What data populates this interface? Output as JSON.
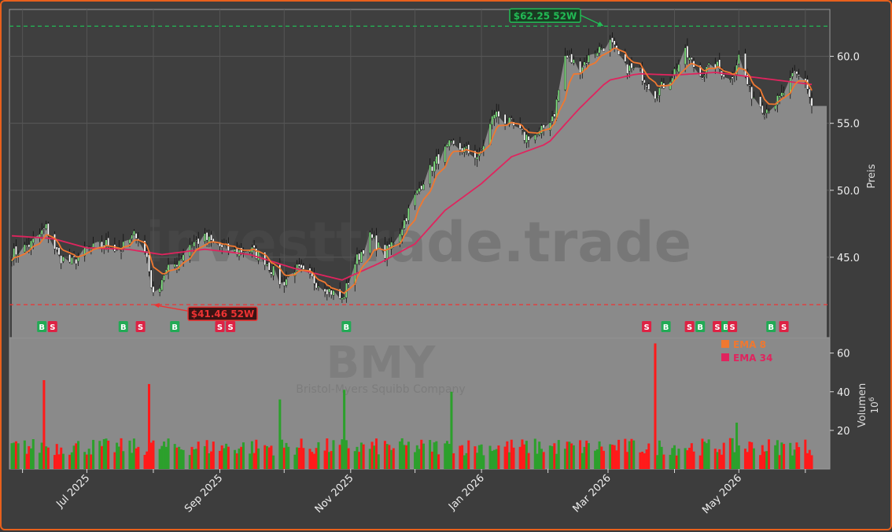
{
  "ticker": "BMY",
  "company": "Bristol-Myers Squibb Company",
  "watermark": "investtrade.trade",
  "price_axis_label": "Preis",
  "volume_axis_label": "Volumen",
  "volume_exponent": "10",
  "volume_exponent_power": "6",
  "high_label": "$62.25 52W",
  "low_label": "$41.46 52W",
  "legend": [
    {
      "label": "EMA 8",
      "color": "#f07830"
    },
    {
      "label": "EMA 34",
      "color": "#e0245e"
    }
  ],
  "colors": {
    "up": "#2ca02c",
    "down": "#ff1a1a",
    "ema8": "#f07830",
    "ema34": "#e0245e",
    "area": "#8a8a8a",
    "high_line": "#22bb55",
    "low_line": "#ee3333",
    "buy": "#22aa55",
    "sell": "#dd2244"
  },
  "chart_data": {
    "type": "line",
    "title": "BMY",
    "subtitle": "Bristol-Myers Squibb Company",
    "ylabel": "Preis",
    "ylim": [
      39.0,
      63.5
    ],
    "y_ticks": [
      "45.0",
      "50.0",
      "55.0",
      "60.0"
    ],
    "x_ticks": [
      "Jul 2025",
      "Sep 2025",
      "Nov 2025",
      "Jan 2026",
      "Mar 2026",
      "May 2026"
    ],
    "close_series_name": "BMY",
    "close_keyframes": [
      [
        "2025-05-27",
        45.2
      ],
      [
        "2025-06-05",
        46.0
      ],
      [
        "2025-06-12",
        47.2
      ],
      [
        "2025-06-18",
        45.0
      ],
      [
        "2025-06-24",
        44.6
      ],
      [
        "2025-07-01",
        45.5
      ],
      [
        "2025-07-10",
        46.0
      ],
      [
        "2025-07-17",
        45.6
      ],
      [
        "2025-07-24",
        46.8
      ],
      [
        "2025-07-29",
        45.0
      ],
      [
        "2025-08-01",
        42.0
      ],
      [
        "2025-08-06",
        43.8
      ],
      [
        "2025-08-12",
        44.6
      ],
      [
        "2025-08-18",
        46.0
      ],
      [
        "2025-08-25",
        46.4
      ],
      [
        "2025-09-01",
        45.8
      ],
      [
        "2025-09-08",
        45.4
      ],
      [
        "2025-09-15",
        45.6
      ],
      [
        "2025-09-22",
        44.8
      ],
      [
        "2025-09-30",
        43.0
      ],
      [
        "2025-10-06",
        44.2
      ],
      [
        "2025-10-13",
        43.4
      ],
      [
        "2025-10-20",
        42.8
      ],
      [
        "2025-10-28",
        41.8
      ],
      [
        "2025-11-03",
        44.6
      ],
      [
        "2025-11-10",
        46.5
      ],
      [
        "2025-11-17",
        45.2
      ],
      [
        "2025-11-24",
        47.0
      ],
      [
        "2025-12-01",
        49.5
      ],
      [
        "2025-12-05",
        50.8
      ],
      [
        "2025-12-10",
        52.0
      ],
      [
        "2025-12-17",
        53.3
      ],
      [
        "2025-12-24",
        53.0
      ],
      [
        "2025-12-31",
        52.5
      ],
      [
        "2026-01-07",
        55.8
      ],
      [
        "2026-01-14",
        55.0
      ],
      [
        "2026-01-21",
        54.0
      ],
      [
        "2026-01-28",
        54.2
      ],
      [
        "2026-02-04",
        55.8
      ],
      [
        "2026-02-09",
        60.0
      ],
      [
        "2026-02-16",
        59.2
      ],
      [
        "2026-02-23",
        60.4
      ],
      [
        "2026-03-02",
        61.0
      ],
      [
        "2026-03-09",
        59.2
      ],
      [
        "2026-03-16",
        58.8
      ],
      [
        "2026-03-23",
        57.2
      ],
      [
        "2026-03-30",
        58.4
      ],
      [
        "2026-04-06",
        60.2
      ],
      [
        "2026-04-13",
        58.6
      ],
      [
        "2026-04-20",
        59.4
      ],
      [
        "2026-04-27",
        58.2
      ],
      [
        "2026-05-01",
        60.0
      ],
      [
        "2026-05-06",
        57.4
      ],
      [
        "2026-05-13",
        56.0
      ],
      [
        "2026-05-20",
        56.8
      ],
      [
        "2026-05-27",
        58.6
      ],
      [
        "2026-06-01",
        58.3
      ],
      [
        "2026-06-04",
        56.3
      ]
    ],
    "ema8_series_name": "EMA 8",
    "ema34_series_name": "EMA 34",
    "ema34_keyframes": [
      [
        "2025-05-27",
        46.6
      ],
      [
        "2025-06-15",
        46.4
      ],
      [
        "2025-07-01",
        45.7
      ],
      [
        "2025-07-20",
        45.6
      ],
      [
        "2025-08-05",
        45.2
      ],
      [
        "2025-08-25",
        45.6
      ],
      [
        "2025-09-15",
        45.2
      ],
      [
        "2025-10-05",
        44.2
      ],
      [
        "2025-10-28",
        43.3
      ],
      [
        "2025-11-15",
        44.6
      ],
      [
        "2025-12-01",
        46.0
      ],
      [
        "2025-12-15",
        48.5
      ],
      [
        "2026-01-01",
        50.5
      ],
      [
        "2026-01-15",
        52.5
      ],
      [
        "2026-02-01",
        53.5
      ],
      [
        "2026-02-15",
        56.0
      ],
      [
        "2026-03-01",
        58.2
      ],
      [
        "2026-03-15",
        58.7
      ],
      [
        "2026-04-01",
        58.6
      ],
      [
        "2026-04-20",
        58.8
      ],
      [
        "2026-05-10",
        58.4
      ],
      [
        "2026-06-04",
        57.9
      ]
    ],
    "high_52w": 62.25,
    "low_52w": 41.46,
    "signals": [
      {
        "date": "2025-06-10",
        "type": "B"
      },
      {
        "date": "2025-06-15",
        "type": "S"
      },
      {
        "date": "2025-07-18",
        "type": "B"
      },
      {
        "date": "2025-07-26",
        "type": "S"
      },
      {
        "date": "2025-08-11",
        "type": "B"
      },
      {
        "date": "2025-09-01",
        "type": "S"
      },
      {
        "date": "2025-09-06",
        "type": "S"
      },
      {
        "date": "2025-10-30",
        "type": "B"
      },
      {
        "date": "2026-03-19",
        "type": "S"
      },
      {
        "date": "2026-03-28",
        "type": "B"
      },
      {
        "date": "2026-04-08",
        "type": "S"
      },
      {
        "date": "2026-04-13",
        "type": "B"
      },
      {
        "date": "2026-04-21",
        "type": "S"
      },
      {
        "date": "2026-04-25",
        "type": "B"
      },
      {
        "date": "2026-04-28",
        "type": "S"
      },
      {
        "date": "2026-05-16",
        "type": "B"
      },
      {
        "date": "2026-05-22",
        "type": "S"
      }
    ],
    "volume": {
      "ylabel": "Volumen",
      "unit": "10^6",
      "ylim": [
        0,
        68
      ],
      "y_ticks": [
        "20",
        "40",
        "60"
      ],
      "spikes": [
        {
          "date": "2025-06-12",
          "value": 46,
          "dir": "down"
        },
        {
          "date": "2025-07-31",
          "value": 44,
          "dir": "down"
        },
        {
          "date": "2025-09-30",
          "value": 36,
          "dir": "up"
        },
        {
          "date": "2025-10-30",
          "value": 41,
          "dir": "up"
        },
        {
          "date": "2025-12-19",
          "value": 40,
          "dir": "up"
        },
        {
          "date": "2026-03-23",
          "value": 65,
          "dir": "down"
        },
        {
          "date": "2026-05-01",
          "value": 24,
          "dir": "up"
        }
      ]
    }
  }
}
